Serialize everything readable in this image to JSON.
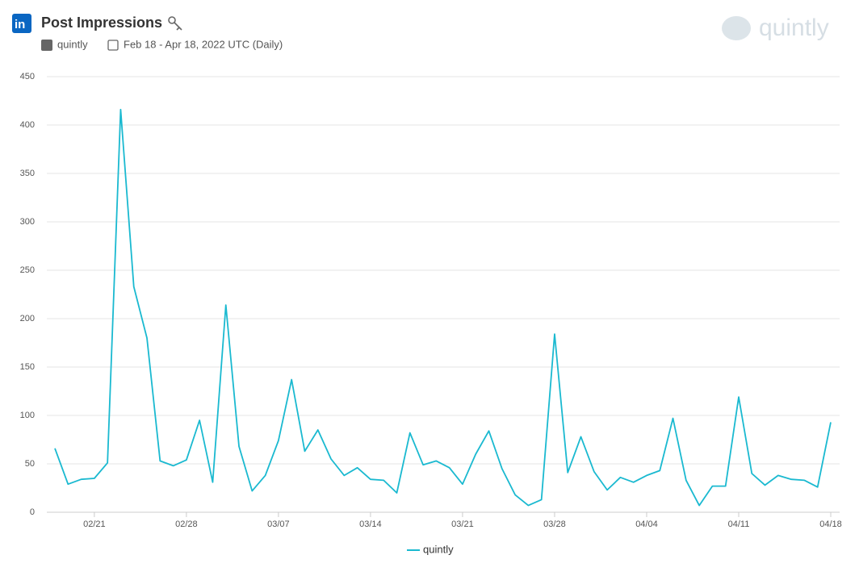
{
  "chart_data": {
    "type": "line",
    "title": "Post Impressions",
    "source": "quintly",
    "subtitle": "Feb 18 - Apr 18, 2022 UTC (Daily)",
    "brand": "quintly",
    "categories": [
      null,
      null,
      null,
      "02/21",
      null,
      null,
      null,
      null,
      null,
      null,
      "02/28",
      null,
      null,
      null,
      null,
      null,
      null,
      "03/07",
      null,
      null,
      null,
      null,
      null,
      null,
      "03/14",
      null,
      null,
      null,
      null,
      null,
      null,
      "03/21",
      null,
      null,
      null,
      null,
      null,
      null,
      "03/28",
      null,
      null,
      null,
      null,
      null,
      null,
      "04/04",
      null,
      null,
      null,
      null,
      null,
      null,
      "04/11",
      null,
      null,
      null,
      null,
      null,
      null,
      "04/18"
    ],
    "series": [
      {
        "name": "quintly",
        "color": "#1ab9d0",
        "values": [
          66,
          29,
          34,
          35,
          51,
          416,
          233,
          180,
          53,
          48,
          54,
          95,
          31,
          214,
          68,
          22,
          38,
          74,
          137,
          63,
          85,
          55,
          38,
          46,
          34,
          33,
          20,
          82,
          49,
          53,
          46,
          29,
          60,
          84,
          45,
          18,
          7,
          13,
          184,
          41,
          78,
          42,
          23,
          36,
          31,
          38,
          43,
          97,
          33,
          7,
          27,
          27,
          119,
          40,
          28,
          38,
          34,
          33,
          26,
          93
        ]
      }
    ],
    "ylim": [
      0,
      450
    ],
    "yticks": [
      0,
      50,
      100,
      150,
      200,
      250,
      300,
      350,
      400,
      450
    ],
    "grid": true,
    "legend": "bottom"
  }
}
